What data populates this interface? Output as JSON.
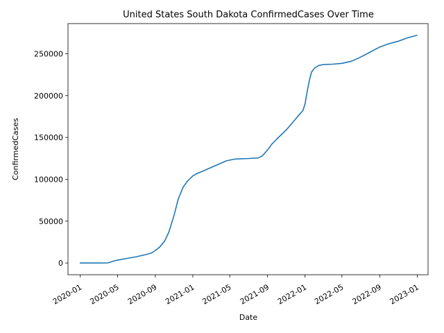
{
  "chart_data": {
    "type": "line",
    "title": "United States South Dakota ConfirmedCases Over Time",
    "xlabel": "Date",
    "ylabel": "ConfirmedCases",
    "grid": false,
    "legend": "none",
    "xlim": [
      "2019-11-22",
      "2023-02-05"
    ],
    "ylim": [
      -14000,
      286000
    ],
    "x_ticks": [
      "2020-01",
      "2020-05",
      "2020-09",
      "2021-01",
      "2021-05",
      "2021-09",
      "2022-01",
      "2022-05",
      "2022-09",
      "2023-01"
    ],
    "x_tick_dates": [
      "2020-01-01",
      "2020-05-01",
      "2020-09-01",
      "2021-01-01",
      "2021-05-01",
      "2021-09-01",
      "2022-01-01",
      "2022-05-01",
      "2022-09-01",
      "2023-01-01"
    ],
    "y_ticks": [
      0,
      50000,
      100000,
      150000,
      200000,
      250000
    ],
    "y_tick_labels": [
      "0",
      "50000",
      "100000",
      "150000",
      "200000",
      "250000"
    ],
    "series": [
      {
        "color": "#1f77b4",
        "x": [
          "2020-01-01",
          "2020-03-01",
          "2020-03-31",
          "2020-04-15",
          "2020-05-01",
          "2020-06-01",
          "2020-07-01",
          "2020-08-01",
          "2020-08-20",
          "2020-09-01",
          "2020-09-15",
          "2020-10-01",
          "2020-10-15",
          "2020-11-01",
          "2020-11-15",
          "2020-12-01",
          "2020-12-15",
          "2021-01-01",
          "2021-01-15",
          "2021-02-01",
          "2021-03-01",
          "2021-04-01",
          "2021-04-20",
          "2021-05-15",
          "2021-06-01",
          "2021-07-01",
          "2021-08-01",
          "2021-08-15",
          "2021-09-01",
          "2021-09-15",
          "2021-10-01",
          "2021-10-15",
          "2021-11-01",
          "2021-11-15",
          "2021-12-01",
          "2021-12-15",
          "2021-12-25",
          "2022-01-01",
          "2022-01-08",
          "2022-01-15",
          "2022-01-22",
          "2022-02-01",
          "2022-02-15",
          "2022-03-01",
          "2022-04-01",
          "2022-05-01",
          "2022-06-01",
          "2022-07-01",
          "2022-08-01",
          "2022-09-01",
          "2022-10-01",
          "2022-11-01",
          "2022-12-01",
          "2022-12-31"
        ],
        "y": [
          0,
          0,
          200,
          2000,
          3500,
          5500,
          7500,
          10000,
          12000,
          15000,
          19000,
          26000,
          37000,
          57000,
          77000,
          91000,
          98000,
          104000,
          107000,
          109500,
          114000,
          119000,
          122000,
          124000,
          124500,
          124800,
          125500,
          128000,
          135000,
          142000,
          148000,
          153000,
          159000,
          165000,
          172000,
          178000,
          182000,
          190000,
          205000,
          218000,
          228000,
          233000,
          236000,
          237000,
          237500,
          238500,
          241000,
          246000,
          252000,
          258000,
          262000,
          265000,
          269000,
          272000
        ]
      }
    ]
  }
}
